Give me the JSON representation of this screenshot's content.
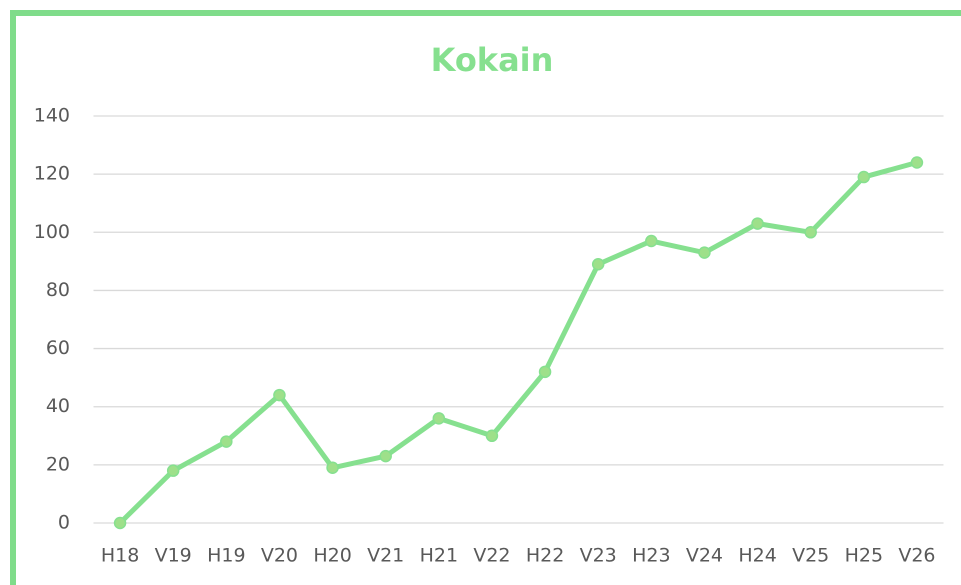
{
  "chart_data": {
    "type": "line",
    "title": "Kokain",
    "categories": [
      "H18",
      "V19",
      "H19",
      "V20",
      "H20",
      "V21",
      "H21",
      "V22",
      "H22",
      "V23",
      "H23",
      "V24",
      "H24",
      "V25",
      "H25",
      "V26"
    ],
    "series": [
      {
        "name": "Kokain",
        "color": "#86e08f",
        "values": [
          0,
          18,
          28,
          44,
          19,
          23,
          36,
          30,
          52,
          89,
          97,
          93,
          103,
          100,
          119,
          124
        ]
      }
    ],
    "ylim": [
      0,
      140
    ],
    "yticks": [
      0,
      20,
      40,
      60,
      80,
      100,
      120,
      140
    ],
    "grid": true
  }
}
